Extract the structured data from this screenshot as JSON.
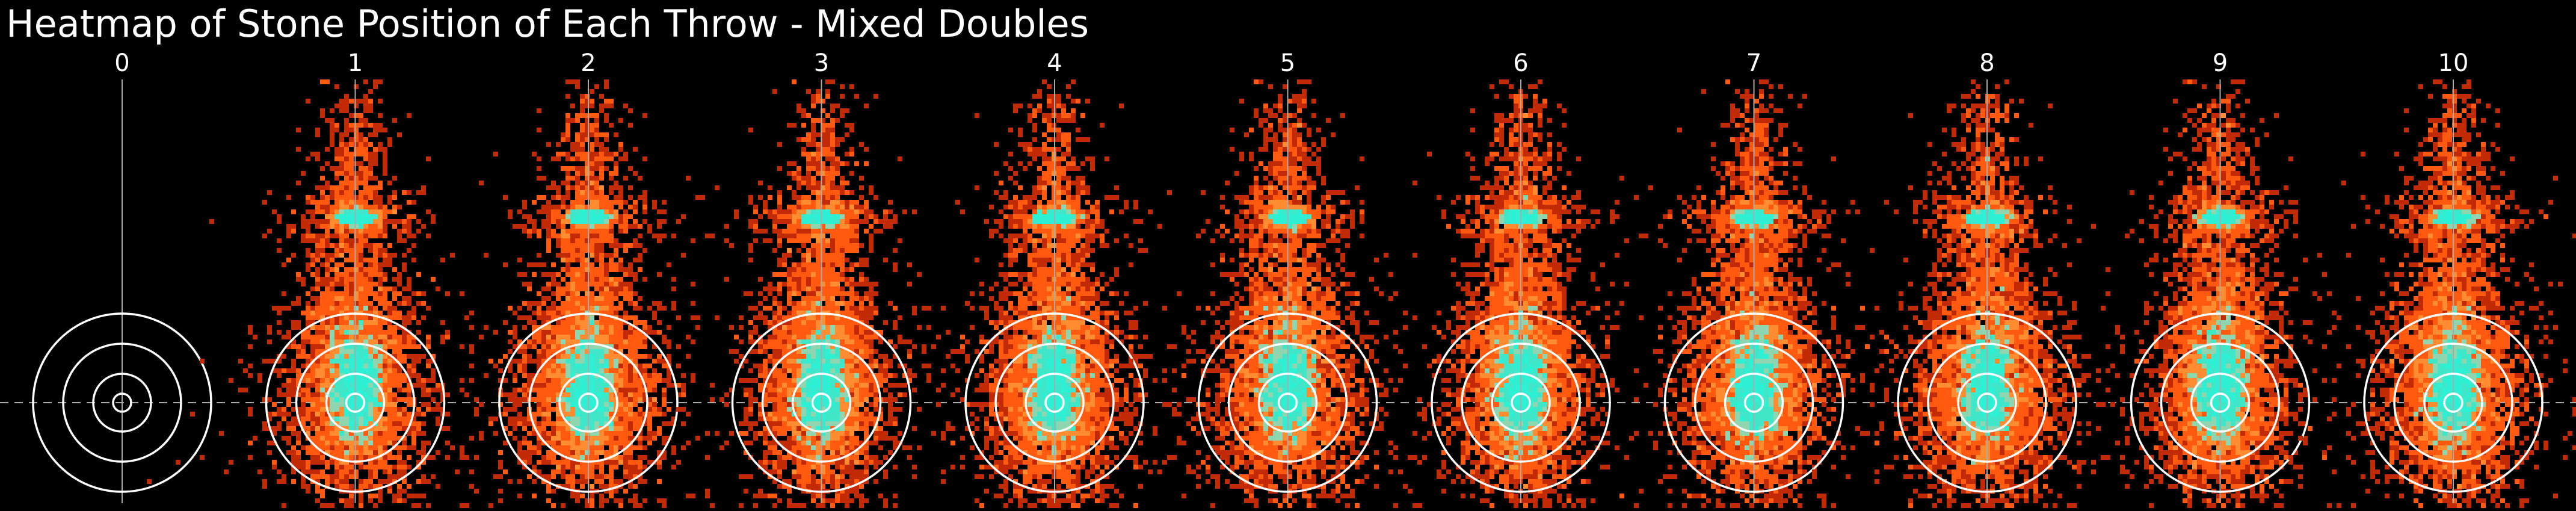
{
  "chart_data": {
    "type": "heatmap",
    "title": "Heatmap of Stone Position of Each Throw - Mixed Doubles",
    "panel_labels": [
      "0",
      "1",
      "2",
      "3",
      "4",
      "5",
      "6",
      "7",
      "8",
      "9",
      "10"
    ],
    "x_label": "",
    "y_label": "",
    "grid": false,
    "legend": "none",
    "colormap": [
      "#000000",
      "#c22a05",
      "#ff5a10",
      "#ff8c30",
      "#8fd6b0",
      "#3fe6c8",
      "#2ef0d5"
    ],
    "reference_panel": "0",
    "house_rings": 4,
    "hotspots": [
      {
        "name": "guard-zone",
        "relative_intensity": "medium"
      },
      {
        "name": "button",
        "relative_intensity": "high"
      }
    ],
    "colors": {
      "background": "#000000",
      "lines": "#ffffff",
      "text": "#ffffff",
      "centerline": "#aaaaaa"
    }
  }
}
